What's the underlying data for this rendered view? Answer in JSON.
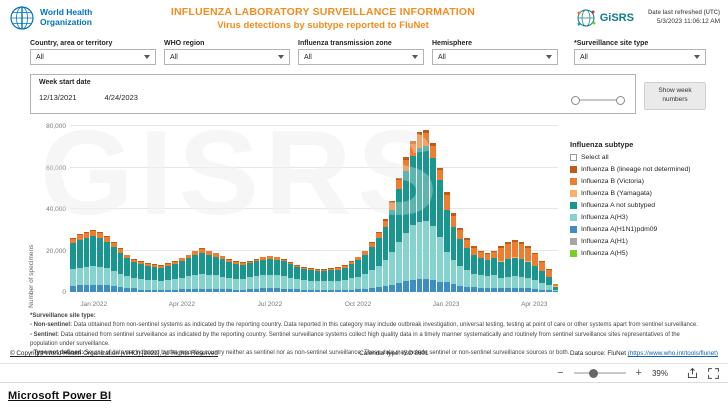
{
  "header": {
    "who_line1": "World Health",
    "who_line2": "Organization",
    "title": "INFLUENZA LABORATORY SURVEILLANCE INFORMATION",
    "subtitle": "Virus detections by subtype reported to FluNet",
    "gisrs_text": "GiSRS",
    "refresh_label": "Date last refreshed (UTC)",
    "refresh_value": "5/3/2023 11:06:12 AM"
  },
  "filters": [
    {
      "label": "Country, area or territory",
      "value": "All"
    },
    {
      "label": "WHO region",
      "value": "All"
    },
    {
      "label": "Influenza transmission zone",
      "value": "All"
    },
    {
      "label": "Hemisphere",
      "value": "All"
    },
    {
      "label": "*Surveillance site type",
      "value": "All"
    }
  ],
  "week_slicer": {
    "label": "Week start date",
    "start": "12/13/2021",
    "end": "4/24/2023"
  },
  "show_week_button": "Show week numbers",
  "chart_data": {
    "type": "bar",
    "stacked": true,
    "ylabel": "Number of specimens",
    "ylim": [
      0,
      80000
    ],
    "yticks": [
      0,
      20000,
      40000,
      60000,
      80000
    ],
    "ytick_labels": [
      "0",
      "20,000",
      "40,000",
      "60,000",
      "80,000"
    ],
    "x_unit": "week start date (weekly bars)",
    "x_start": "12/13/2021",
    "x_end": "4/24/2023",
    "xticks": [
      {
        "index": 3,
        "label": "Jan 2022"
      },
      {
        "index": 16,
        "label": "Apr 2022"
      },
      {
        "index": 29,
        "label": "Jul 2022"
      },
      {
        "index": 42,
        "label": "Oct 2022"
      },
      {
        "index": 55,
        "label": "Jan 2023"
      },
      {
        "index": 68,
        "label": "Apr 2023"
      }
    ],
    "series": [
      {
        "name": "Influenza A(H1N1)pdm09",
        "color": "#3E8EC4",
        "values": [
          3120,
          3360,
          3480,
          3600,
          3480,
          3240,
          2880,
          2520,
          2160,
          1920,
          1200,
          1120,
          1080,
          1040,
          1120,
          1200,
          1320,
          1440,
          1600,
          1680,
          1600,
          1520,
          1400,
          1280,
          1200,
          1160,
          1500,
          1600,
          1700,
          1750,
          1700,
          1600,
          1450,
          1300,
          1200,
          1150,
          1100,
          1100,
          1150,
          960,
          1040,
          1200,
          1360,
          1600,
          1920,
          2320,
          2800,
          3520,
          4400,
          5200,
          5840,
          6160,
          6240,
          5760,
          4800,
          4800,
          3800,
          3100,
          2600,
          2200,
          2000,
          1900,
          2000,
          1760,
          1920,
          2000,
          1920,
          1760,
          1520,
          1200,
          880,
          320
        ]
      },
      {
        "name": "Influenza A(H3)",
        "color": "#85D3CF",
        "values": [
          7800,
          8400,
          8700,
          9000,
          8700,
          8100,
          7200,
          6300,
          5400,
          4800,
          5100,
          4760,
          4590,
          4420,
          4760,
          5100,
          5610,
          6120,
          6800,
          7140,
          6800,
          6460,
          5950,
          5440,
          5100,
          4930,
          5700,
          6080,
          6460,
          6650,
          6460,
          6080,
          5510,
          4940,
          4560,
          4370,
          4180,
          4180,
          4370,
          4320,
          4680,
          5400,
          6120,
          7200,
          8640,
          10440,
          12600,
          15840,
          19800,
          23400,
          26280,
          27720,
          28080,
          25920,
          21600,
          14400,
          11400,
          9300,
          7800,
          6600,
          6000,
          5700,
          6000,
          4840,
          5280,
          5500,
          5280,
          4840,
          4180,
          3300,
          2420,
          880
        ]
      },
      {
        "name": "Influenza A not subtyped",
        "color": "#18968F",
        "values": [
          12480,
          13440,
          13920,
          14400,
          13920,
          12960,
          11520,
          10080,
          8640,
          7680,
          7200,
          6720,
          6480,
          6240,
          6720,
          7200,
          7920,
          8640,
          9600,
          10080,
          9600,
          9120,
          8400,
          7680,
          7200,
          6960,
          6600,
          7040,
          7480,
          7700,
          7480,
          7040,
          6380,
          5720,
          5280,
          5060,
          4840,
          4840,
          5060,
          5520,
          5980,
          6900,
          7820,
          9200,
          11040,
          13340,
          16100,
          20240,
          25300,
          29900,
          33580,
          35420,
          35880,
          33120,
          27600,
          20160,
          15960,
          13020,
          10920,
          9240,
          8400,
          7980,
          8400,
          7920,
          8640,
          9000,
          8640,
          7920,
          6840,
          5400,
          3960,
          1440
        ]
      },
      {
        "name": "Influenza B (Yamagata)",
        "color": "#F6B26B",
        "values": [
          0,
          0,
          0,
          0,
          0,
          0,
          0,
          0,
          0,
          0,
          0,
          0,
          0,
          0,
          0,
          0,
          0,
          0,
          0,
          0,
          0,
          0,
          0,
          0,
          0,
          0,
          0,
          0,
          0,
          0,
          0,
          0,
          0,
          0,
          0,
          0,
          0,
          0,
          0,
          0,
          0,
          0,
          0,
          0,
          0,
          0,
          0,
          0,
          0,
          0,
          0,
          0,
          0,
          0,
          0,
          0,
          0,
          0,
          0,
          0,
          0,
          0,
          0,
          220,
          240,
          250,
          240,
          220,
          190,
          150,
          110,
          40
        ]
      },
      {
        "name": "Influenza B (Victoria)",
        "color": "#ED7D31",
        "values": [
          2080,
          2240,
          2320,
          2400,
          2320,
          2160,
          1920,
          1680,
          1440,
          1280,
          1200,
          1120,
          1080,
          1040,
          1120,
          1200,
          1320,
          1440,
          1600,
          1680,
          1600,
          1520,
          1400,
          1280,
          1200,
          1160,
          900,
          960,
          1020,
          1050,
          1020,
          960,
          870,
          780,
          720,
          690,
          660,
          660,
          690,
          960,
          1040,
          1200,
          1360,
          1600,
          1920,
          2320,
          2800,
          3520,
          4400,
          5200,
          5840,
          6160,
          6240,
          5760,
          4800,
          7200,
          5700,
          4650,
          3900,
          3300,
          3000,
          2850,
          3000,
          6380,
          6960,
          7250,
          6960,
          6380,
          5510,
          4350,
          3190,
          1160
        ]
      },
      {
        "name": "Influenza B (lineage not determined)",
        "color": "#BF5B17",
        "values": [
          520,
          560,
          580,
          600,
          580,
          540,
          480,
          420,
          360,
          320,
          300,
          280,
          270,
          260,
          280,
          300,
          330,
          360,
          400,
          420,
          400,
          380,
          350,
          320,
          300,
          290,
          300,
          320,
          340,
          350,
          340,
          320,
          290,
          260,
          240,
          230,
          220,
          220,
          230,
          240,
          260,
          300,
          340,
          400,
          480,
          580,
          700,
          880,
          1100,
          1300,
          1460,
          1540,
          1560,
          1440,
          1200,
          1440,
          1140,
          930,
          780,
          660,
          600,
          570,
          600,
          880,
          960,
          1000,
          960,
          880,
          760,
          600,
          440,
          160
        ]
      }
    ],
    "watermark": "GISRS"
  },
  "legend": {
    "title": "Influenza subtype",
    "items": [
      {
        "label": "Select all",
        "color": null
      },
      {
        "label": "Influenza B (lineage not determined)",
        "color": "#BF5B17"
      },
      {
        "label": "Influenza B (Victoria)",
        "color": "#ED7D31"
      },
      {
        "label": "Influenza B (Yamagata)",
        "color": "#F6B26B"
      },
      {
        "label": "Influenza A not subtyped",
        "color": "#18968F"
      },
      {
        "label": "Influenza A(H3)",
        "color": "#85D3CF"
      },
      {
        "label": "Influenza A(H1N1)pdm09",
        "color": "#3E8EC4"
      },
      {
        "label": "Influenza A(H1)",
        "color": "#A6A6A6"
      },
      {
        "label": "Influenza A(H5)",
        "color": "#7DCB2F"
      }
    ]
  },
  "footnotes": {
    "heading": "*Surveillance site type:",
    "bullets": [
      {
        "term": "- Non-sentinel:",
        "text": " Data obtained from non-sentinel systems as indicated by the reporting country. Data reported in this category may include outbreak investigation, universal testing, testing at point of care or other systems apart from sentinel surveillance."
      },
      {
        "term": "- Sentinel:",
        "text": " Data obtained from sentinel surveillance as indicated by the reporting country. Sentinel surveillance systems collect high quality data in a timely manner systematically and routinely from sentinel surveillance sites representatives of the population under surveillance."
      },
      {
        "term": "- Type not defined:",
        "text": " Source of data not indicated by the reporting country neither as sentinel nor as non-sentinel surveillance. These data may include sentinel or non-sentinel surveillance sources or both."
      }
    ]
  },
  "footer": {
    "copyright": "© Copyright World Health Organization (WHO) [2022], All Rights Reserved",
    "calendar": "Calendar type: ISO 8601",
    "source_label": "Data source: FluNet ",
    "source_url": "(https://www.who.int/tools/flunet)"
  },
  "zoom": {
    "level": "39%",
    "minus": "−",
    "plus": "+"
  },
  "powerbi": {
    "label": "Microsoft Power BI"
  }
}
